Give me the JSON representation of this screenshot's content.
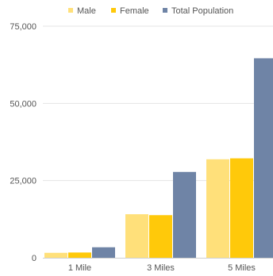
{
  "chart_data": {
    "type": "bar",
    "title": "",
    "xlabel": "",
    "ylabel": "",
    "categories": [
      "1 Mile",
      "3 Miles",
      "5 Miles"
    ],
    "series": [
      {
        "name": "Male",
        "color": "#FFE07A",
        "values": [
          1600,
          14100,
          31900
        ]
      },
      {
        "name": "Female",
        "color": "#FFC90A",
        "values": [
          1700,
          13800,
          32200
        ]
      },
      {
        "name": "Total Population",
        "color": "#6F84A6",
        "values": [
          3400,
          27800,
          64600
        ]
      }
    ],
    "yticks": [
      {
        "value": 0,
        "label": "0"
      },
      {
        "value": 25000,
        "label": "25,000"
      },
      {
        "value": 50000,
        "label": "50,000"
      },
      {
        "value": 75000,
        "label": "75,000"
      }
    ],
    "ylim": [
      0,
      75000
    ],
    "grid": true,
    "legend_position": "top"
  }
}
